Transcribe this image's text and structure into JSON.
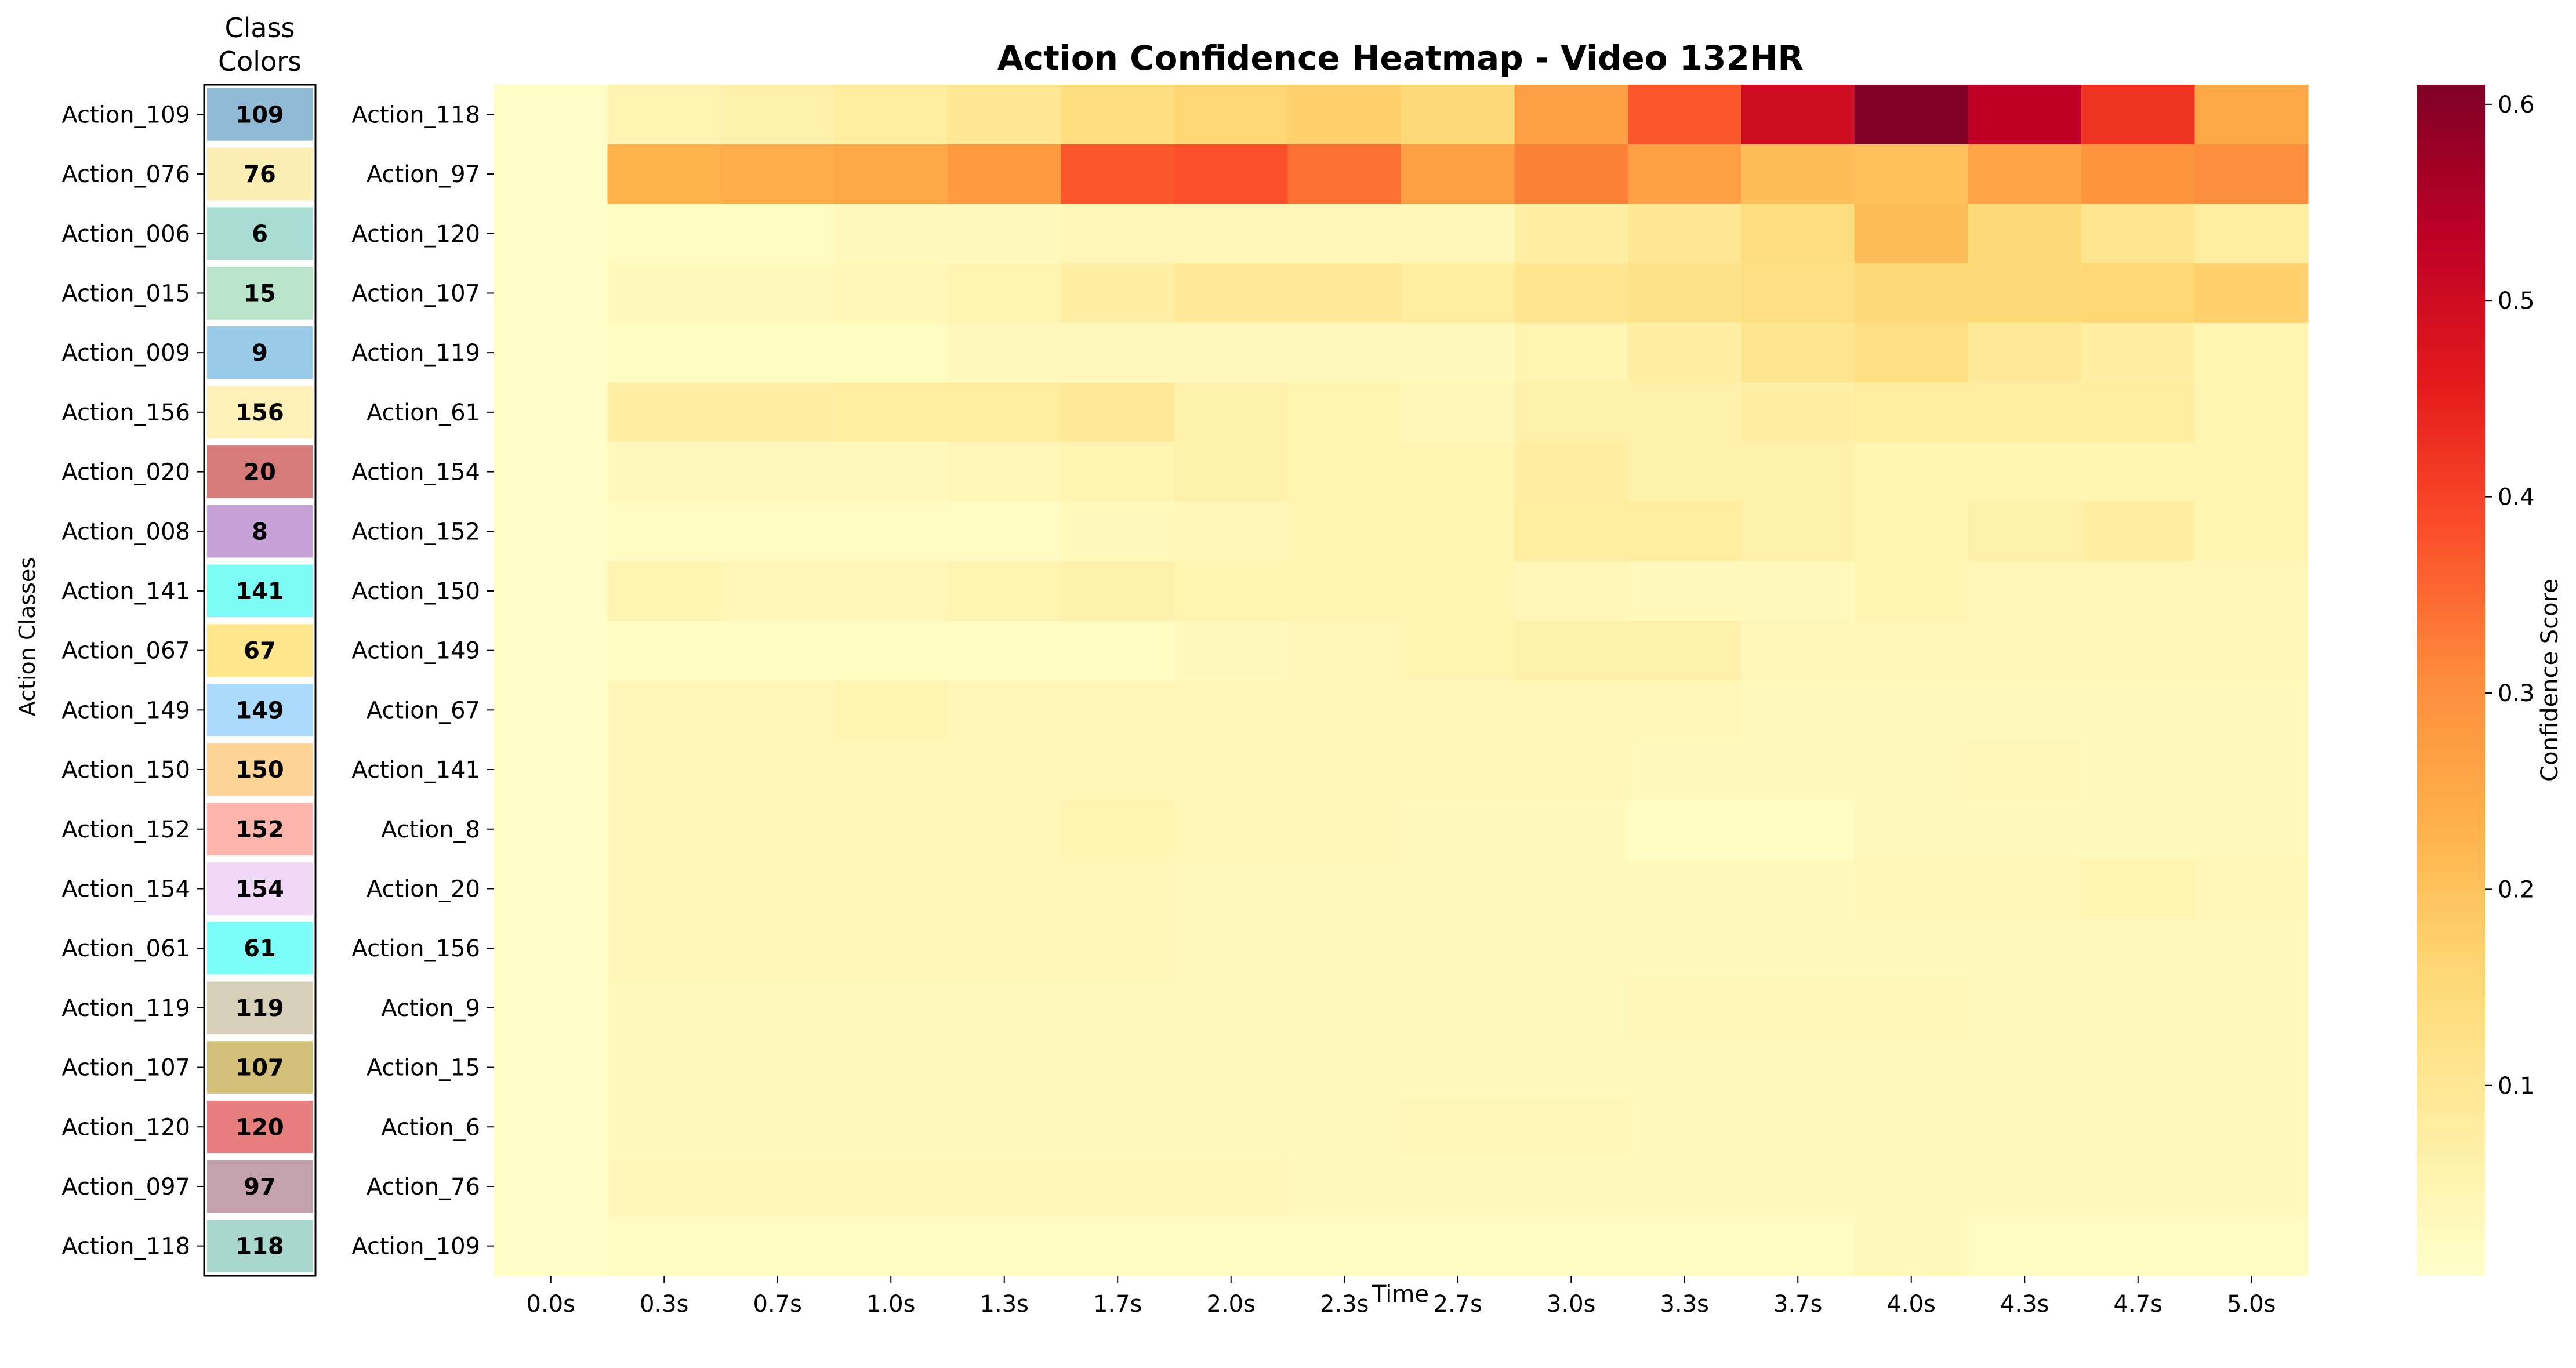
{
  "chart_data": {
    "type": "heatmap",
    "title": "Action Confidence Heatmap - Video 132HR",
    "xlabel": "Time",
    "ylabel": "Action Classes",
    "legend_panel_title_line1": "Class",
    "legend_panel_title_line2": "Colors",
    "colorbar_label": "Confidence Score",
    "colorbar_ticks": [
      "0.1",
      "0.2",
      "0.3",
      "0.4",
      "0.5",
      "0.6"
    ],
    "colorbar_range": [
      0.003,
      0.61
    ],
    "colormap": "YlOrRd",
    "x": [
      "0.0s",
      "0.3s",
      "0.7s",
      "1.0s",
      "1.3s",
      "1.7s",
      "2.0s",
      "2.3s",
      "2.7s",
      "3.0s",
      "3.3s",
      "3.7s",
      "4.0s",
      "4.3s",
      "4.7s",
      "5.0s"
    ],
    "rows": [
      "Action_118",
      "Action_97",
      "Action_120",
      "Action_107",
      "Action_119",
      "Action_61",
      "Action_154",
      "Action_152",
      "Action_150",
      "Action_149",
      "Action_67",
      "Action_141",
      "Action_8",
      "Action_20",
      "Action_156",
      "Action_9",
      "Action_15",
      "Action_6",
      "Action_76",
      "Action_109"
    ],
    "values": [
      [
        0.01,
        0.05,
        0.06,
        0.08,
        0.1,
        0.14,
        0.16,
        0.17,
        0.15,
        0.27,
        0.37,
        0.5,
        0.61,
        0.53,
        0.42,
        0.25
      ],
      [
        0.01,
        0.23,
        0.24,
        0.25,
        0.28,
        0.37,
        0.38,
        0.34,
        0.27,
        0.32,
        0.27,
        0.21,
        0.2,
        0.26,
        0.29,
        0.3
      ],
      [
        0.01,
        0.02,
        0.02,
        0.03,
        0.03,
        0.04,
        0.04,
        0.04,
        0.04,
        0.07,
        0.1,
        0.14,
        0.21,
        0.15,
        0.11,
        0.08
      ],
      [
        0.01,
        0.03,
        0.03,
        0.04,
        0.05,
        0.07,
        0.09,
        0.09,
        0.08,
        0.11,
        0.12,
        0.13,
        0.15,
        0.15,
        0.16,
        0.17
      ],
      [
        0.01,
        0.02,
        0.02,
        0.02,
        0.03,
        0.03,
        0.03,
        0.03,
        0.03,
        0.05,
        0.07,
        0.11,
        0.13,
        0.09,
        0.07,
        0.05
      ],
      [
        0.01,
        0.07,
        0.07,
        0.08,
        0.08,
        0.09,
        0.06,
        0.05,
        0.04,
        0.06,
        0.06,
        0.07,
        0.08,
        0.08,
        0.08,
        0.05
      ],
      [
        0.01,
        0.03,
        0.03,
        0.03,
        0.04,
        0.05,
        0.06,
        0.05,
        0.05,
        0.07,
        0.06,
        0.06,
        0.05,
        0.05,
        0.05,
        0.05
      ],
      [
        0.01,
        0.02,
        0.02,
        0.02,
        0.02,
        0.03,
        0.04,
        0.05,
        0.05,
        0.08,
        0.08,
        0.06,
        0.05,
        0.06,
        0.07,
        0.05
      ],
      [
        0.01,
        0.05,
        0.04,
        0.04,
        0.05,
        0.06,
        0.05,
        0.05,
        0.05,
        0.04,
        0.03,
        0.03,
        0.05,
        0.04,
        0.04,
        0.04
      ],
      [
        0.01,
        0.02,
        0.02,
        0.02,
        0.02,
        0.02,
        0.03,
        0.04,
        0.05,
        0.06,
        0.06,
        0.04,
        0.04,
        0.04,
        0.04,
        0.04
      ],
      [
        0.01,
        0.04,
        0.04,
        0.05,
        0.04,
        0.04,
        0.04,
        0.04,
        0.04,
        0.04,
        0.04,
        0.03,
        0.03,
        0.03,
        0.03,
        0.03
      ],
      [
        0.01,
        0.04,
        0.04,
        0.04,
        0.04,
        0.04,
        0.04,
        0.04,
        0.04,
        0.04,
        0.03,
        0.03,
        0.03,
        0.04,
        0.03,
        0.03
      ],
      [
        0.01,
        0.04,
        0.04,
        0.04,
        0.04,
        0.05,
        0.04,
        0.04,
        0.03,
        0.03,
        0.02,
        0.02,
        0.03,
        0.03,
        0.03,
        0.03
      ],
      [
        0.01,
        0.04,
        0.04,
        0.04,
        0.04,
        0.04,
        0.03,
        0.03,
        0.03,
        0.03,
        0.03,
        0.03,
        0.04,
        0.04,
        0.05,
        0.04
      ],
      [
        0.01,
        0.04,
        0.04,
        0.04,
        0.04,
        0.04,
        0.03,
        0.03,
        0.03,
        0.03,
        0.03,
        0.03,
        0.03,
        0.03,
        0.03,
        0.03
      ],
      [
        0.01,
        0.03,
        0.03,
        0.03,
        0.03,
        0.03,
        0.03,
        0.03,
        0.03,
        0.03,
        0.04,
        0.04,
        0.04,
        0.03,
        0.03,
        0.03
      ],
      [
        0.01,
        0.03,
        0.03,
        0.03,
        0.03,
        0.03,
        0.03,
        0.03,
        0.03,
        0.03,
        0.03,
        0.03,
        0.03,
        0.03,
        0.03,
        0.03
      ],
      [
        0.01,
        0.03,
        0.03,
        0.03,
        0.03,
        0.03,
        0.03,
        0.03,
        0.04,
        0.04,
        0.03,
        0.03,
        0.03,
        0.03,
        0.03,
        0.03
      ],
      [
        0.01,
        0.04,
        0.04,
        0.04,
        0.04,
        0.04,
        0.04,
        0.03,
        0.03,
        0.03,
        0.03,
        0.03,
        0.03,
        0.03,
        0.03,
        0.03
      ],
      [
        0.01,
        0.02,
        0.02,
        0.02,
        0.02,
        0.02,
        0.02,
        0.02,
        0.02,
        0.02,
        0.02,
        0.02,
        0.03,
        0.02,
        0.02,
        0.02
      ]
    ],
    "class_colors": {
      "labels": [
        "Action_109",
        "Action_076",
        "Action_006",
        "Action_015",
        "Action_009",
        "Action_156",
        "Action_020",
        "Action_008",
        "Action_141",
        "Action_067",
        "Action_149",
        "Action_150",
        "Action_152",
        "Action_154",
        "Action_061",
        "Action_119",
        "Action_107",
        "Action_120",
        "Action_097",
        "Action_118"
      ],
      "ids": [
        "109",
        "76",
        "6",
        "15",
        "9",
        "156",
        "20",
        "8",
        "141",
        "67",
        "149",
        "150",
        "152",
        "154",
        "61",
        "119",
        "107",
        "120",
        "97",
        "118"
      ],
      "colors": [
        "#8fb9d4",
        "#fdeeb3",
        "#a9ddd3",
        "#b9e4c9",
        "#99cbe8",
        "#fff0b8",
        "#d67a7a",
        "#c7a2d8",
        "#7cfbf5",
        "#fde68c",
        "#abd9fb",
        "#fed597",
        "#fdb4aa",
        "#f2d8f8",
        "#7dfdf8",
        "#d8cfb8",
        "#d2c078",
        "#e87f7f",
        "#c4a2ad",
        "#a9d7cd"
      ]
    }
  }
}
